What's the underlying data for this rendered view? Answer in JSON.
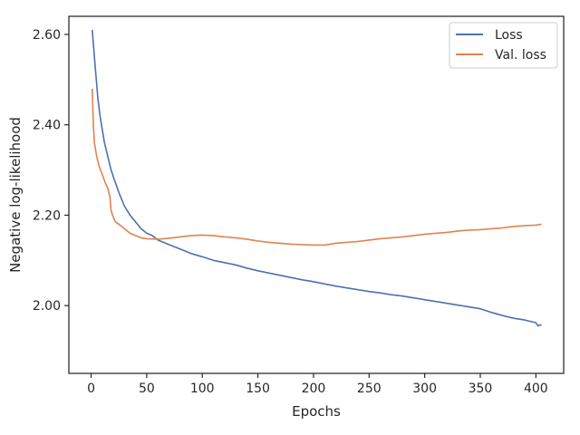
{
  "chart_data": {
    "type": "line",
    "xlabel": "Epochs",
    "ylabel": "Negative log-likelihood",
    "xlim": [
      -20,
      425
    ],
    "ylim": [
      1.85,
      2.64
    ],
    "xticks": [
      0,
      50,
      100,
      150,
      200,
      250,
      300,
      350,
      400
    ],
    "yticks": [
      2.0,
      2.2,
      2.4,
      2.6
    ],
    "ytick_labels": [
      "2.00",
      "2.20",
      "2.40",
      "2.60"
    ],
    "grid": false,
    "legend_position": "top-right",
    "series": [
      {
        "name": "Loss",
        "color": "#4c72b0",
        "x": [
          1,
          2,
          3,
          4,
          5,
          6,
          7,
          8,
          10,
          12,
          15,
          18,
          20,
          25,
          30,
          35,
          40,
          45,
          50,
          55,
          60,
          70,
          80,
          90,
          100,
          110,
          120,
          130,
          140,
          150,
          160,
          170,
          180,
          190,
          200,
          210,
          220,
          230,
          240,
          250,
          260,
          270,
          280,
          290,
          300,
          310,
          320,
          330,
          340,
          350,
          360,
          370,
          380,
          390,
          400,
          402,
          405
        ],
        "y": [
          2.61,
          2.58,
          2.55,
          2.52,
          2.49,
          2.46,
          2.44,
          2.42,
          2.39,
          2.36,
          2.33,
          2.3,
          2.285,
          2.25,
          2.22,
          2.2,
          2.185,
          2.17,
          2.16,
          2.155,
          2.145,
          2.135,
          2.125,
          2.115,
          2.108,
          2.1,
          2.095,
          2.09,
          2.083,
          2.077,
          2.072,
          2.067,
          2.062,
          2.057,
          2.053,
          2.048,
          2.043,
          2.039,
          2.035,
          2.031,
          2.028,
          2.024,
          2.021,
          2.017,
          2.013,
          2.009,
          2.005,
          2.001,
          1.997,
          1.993,
          1.985,
          1.978,
          1.972,
          1.968,
          1.962,
          1.955,
          1.958
        ]
      },
      {
        "name": "Val. loss",
        "color": "#dd8452",
        "x": [
          1,
          2,
          3,
          5,
          7,
          10,
          13,
          15,
          17,
          18,
          20,
          22,
          25,
          30,
          35,
          40,
          45,
          50,
          60,
          70,
          80,
          90,
          100,
          110,
          120,
          130,
          140,
          150,
          160,
          170,
          180,
          190,
          200,
          210,
          220,
          230,
          240,
          250,
          260,
          270,
          280,
          290,
          300,
          310,
          320,
          330,
          340,
          350,
          360,
          370,
          380,
          390,
          400,
          405
        ],
        "y": [
          2.48,
          2.4,
          2.36,
          2.33,
          2.31,
          2.29,
          2.27,
          2.26,
          2.24,
          2.21,
          2.195,
          2.185,
          2.18,
          2.17,
          2.16,
          2.155,
          2.15,
          2.148,
          2.147,
          2.149,
          2.152,
          2.155,
          2.156,
          2.155,
          2.152,
          2.15,
          2.147,
          2.143,
          2.14,
          2.138,
          2.136,
          2.135,
          2.134,
          2.134,
          2.138,
          2.14,
          2.142,
          2.145,
          2.148,
          2.15,
          2.152,
          2.155,
          2.158,
          2.16,
          2.162,
          2.165,
          2.167,
          2.168,
          2.17,
          2.172,
          2.175,
          2.177,
          2.178,
          2.18
        ]
      }
    ]
  }
}
